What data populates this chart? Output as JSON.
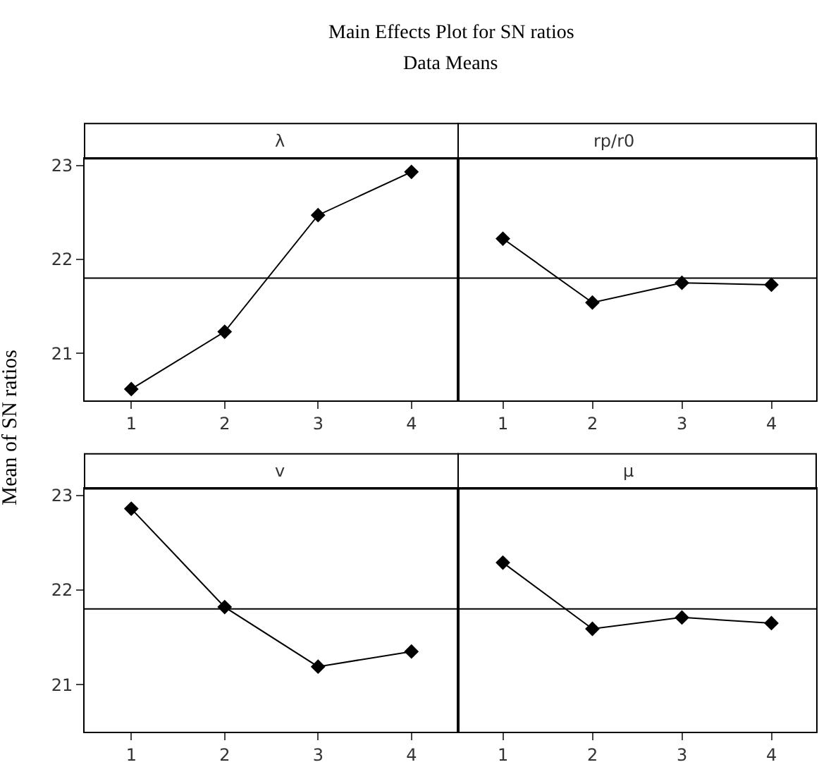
{
  "chart_data": [
    {
      "type": "line",
      "title": "λ",
      "ylabel": "Mean of SN ratios",
      "annotations": [
        "Main Effects Plot for SN ratios",
        "Data Means"
      ],
      "x": [
        1,
        2,
        3,
        4
      ],
      "xlim": [
        0.5,
        4.5
      ],
      "xticks": [
        1,
        2,
        3,
        4
      ],
      "ylim": [
        20.5,
        23.07
      ],
      "yticks": [
        21,
        22,
        23
      ],
      "grid": false,
      "marker": "diamond",
      "ref_lines": [
        {
          "axis": "y",
          "value": 21.8,
          "color": "#000000"
        }
      ],
      "series": [
        {
          "color": "#000000",
          "values": [
            20.62,
            21.23,
            22.47,
            22.93
          ]
        }
      ]
    },
    {
      "type": "line",
      "title": "rp/r0",
      "x": [
        1,
        2,
        3,
        4
      ],
      "xlim": [
        0.5,
        4.5
      ],
      "xticks": [
        1,
        2,
        3,
        4
      ],
      "ylim": [
        20.5,
        23.07
      ],
      "yticks": [
        21,
        22,
        23
      ],
      "tick_labels": "x",
      "grid": false,
      "marker": "diamond",
      "ref_lines": [
        {
          "axis": "y",
          "value": 21.8,
          "color": "#000000"
        }
      ],
      "series": [
        {
          "color": "#000000",
          "values": [
            22.22,
            21.54,
            21.75,
            21.73
          ]
        }
      ]
    },
    {
      "type": "line",
      "title": "v",
      "x": [
        1,
        2,
        3,
        4
      ],
      "xlim": [
        0.5,
        4.5
      ],
      "xticks": [
        1,
        2,
        3,
        4
      ],
      "ylim": [
        20.5,
        23.07
      ],
      "yticks": [
        21,
        22,
        23
      ],
      "grid": false,
      "marker": "diamond",
      "ref_lines": [
        {
          "axis": "y",
          "value": 21.8,
          "color": "#000000"
        }
      ],
      "series": [
        {
          "color": "#000000",
          "values": [
            22.86,
            21.82,
            21.19,
            21.35
          ]
        }
      ]
    },
    {
      "type": "line",
      "title": "μ",
      "x": [
        1,
        2,
        3,
        4
      ],
      "xlim": [
        0.5,
        4.5
      ],
      "xticks": [
        1,
        2,
        3,
        4
      ],
      "ylim": [
        20.5,
        23.07
      ],
      "yticks": [
        21,
        22,
        23
      ],
      "tick_labels": "x",
      "grid": false,
      "marker": "diamond",
      "ref_lines": [
        {
          "axis": "y",
          "value": 21.8,
          "color": "#000000"
        }
      ],
      "series": [
        {
          "color": "#000000",
          "values": [
            22.29,
            21.59,
            21.71,
            21.65
          ]
        }
      ]
    }
  ]
}
